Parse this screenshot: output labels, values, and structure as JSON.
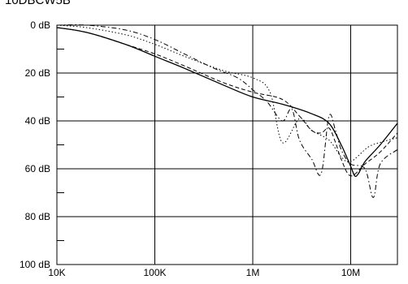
{
  "chart_data": {
    "type": "line",
    "title": "10DBCW5B",
    "xlabel": "",
    "ylabel": "",
    "x_scale": "log",
    "x_unit": "Hz",
    "xlim": [
      10000,
      30000000
    ],
    "ylim": [
      0,
      100
    ],
    "y_inverted": true,
    "x_ticks": [
      {
        "value": 10000,
        "label": "10K"
      },
      {
        "value": 100000,
        "label": "100K"
      },
      {
        "value": 1000000,
        "label": "1M"
      },
      {
        "value": 10000000,
        "label": "10M"
      }
    ],
    "y_ticks": [
      {
        "value": 0,
        "label": "0 dB"
      },
      {
        "value": 20,
        "label": "20 dB"
      },
      {
        "value": 40,
        "label": "40 dB"
      },
      {
        "value": 60,
        "label": "60 dB"
      },
      {
        "value": 80,
        "label": "80 dB"
      },
      {
        "value": 100,
        "label": "100 dB"
      }
    ],
    "minor_y_ticks": [
      10,
      30,
      50,
      70,
      90
    ],
    "grid": true,
    "series": [
      {
        "style": "solid",
        "x": [
          10000,
          20000,
          50000,
          100000,
          200000,
          500000,
          1000000,
          2000000,
          4000000,
          6000000,
          8000000,
          10000000,
          11000000,
          12000000,
          14000000,
          20000000,
          30000000
        ],
        "y": [
          1,
          3,
          8,
          13,
          18,
          25,
          30,
          33,
          37,
          41,
          50,
          59,
          63,
          62,
          57,
          50,
          41
        ]
      },
      {
        "style": "dash",
        "x": [
          10000,
          20000,
          50000,
          100000,
          200000,
          500000,
          1000000,
          2000000,
          3000000,
          4000000,
          5000000,
          6000000,
          7000000,
          8000000,
          10000000,
          14000000,
          20000000,
          30000000
        ],
        "y": [
          1,
          3,
          8,
          12,
          17,
          24,
          28,
          31,
          38,
          44,
          45,
          43,
          49,
          56,
          63,
          58,
          53,
          45
        ]
      },
      {
        "style": "dash-dot",
        "x": [
          10000,
          20000,
          50000,
          100000,
          200000,
          400000,
          700000,
          1000000,
          1400000,
          2000000,
          2500000,
          3000000,
          4000000,
          5000000,
          6000000,
          7000000,
          8000000,
          10000000,
          14000000,
          17000000,
          20000000,
          30000000
        ],
        "y": [
          0,
          0,
          2,
          6,
          12,
          18,
          22,
          27,
          32,
          40,
          35,
          48,
          56,
          62,
          38,
          44,
          52,
          58,
          60,
          72,
          58,
          52
        ]
      },
      {
        "style": "dot",
        "x": [
          10000,
          20000,
          50000,
          100000,
          200000,
          500000,
          1000000,
          1500000,
          2000000,
          3000000,
          4000000,
          6000000,
          8000000,
          10000000,
          15000000,
          20000000,
          30000000
        ],
        "y": [
          0,
          1,
          4,
          8,
          13,
          19,
          22,
          28,
          49,
          39,
          44,
          48,
          55,
          57,
          51,
          49,
          47
        ]
      }
    ]
  }
}
